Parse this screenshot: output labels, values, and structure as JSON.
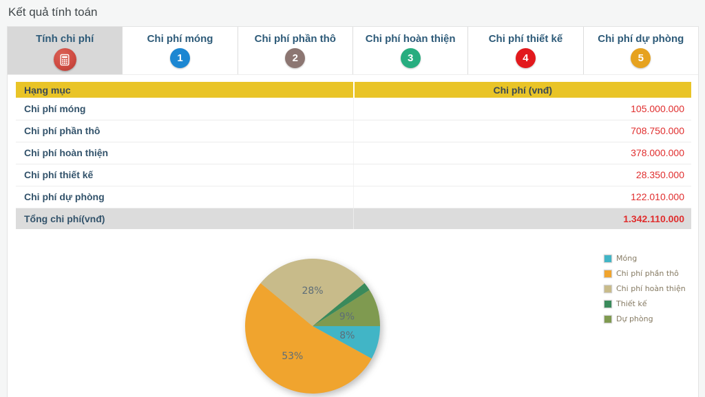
{
  "page": {
    "title": "Kết quả tính toán"
  },
  "colors": {
    "header_yellow": "#e9c427",
    "value_red": "#e02d2d",
    "label_navy": "#33536b",
    "active_tab_bg": "#d8d8d8",
    "total_row_bg": "#dcdcdc"
  },
  "tabs": [
    {
      "label": "Tính chi phí",
      "icon": "calculator-icon",
      "badge": "",
      "badge_color": "#cf4b42",
      "active": true
    },
    {
      "label": "Chi phí móng",
      "icon": "number-badge",
      "badge": "1",
      "badge_color": "#1c87d2",
      "active": false
    },
    {
      "label": "Chi phí phần thô",
      "icon": "number-badge",
      "badge": "2",
      "badge_color": "#8c7672",
      "active": false
    },
    {
      "label": "Chi phí hoàn thiện",
      "icon": "number-badge",
      "badge": "3",
      "badge_color": "#27ad7f",
      "active": false
    },
    {
      "label": "Chi phí thiết kế",
      "icon": "number-badge",
      "badge": "4",
      "badge_color": "#e2191d",
      "active": false
    },
    {
      "label": "Chi phí dự phòng",
      "icon": "number-badge",
      "badge": "5",
      "badge_color": "#e6a21f",
      "active": false
    }
  ],
  "table": {
    "headers": {
      "item": "Hạng mục",
      "cost": "Chi phí (vnđ)"
    },
    "rows": [
      {
        "item": "Chi phí móng",
        "cost": "105.000.000"
      },
      {
        "item": "Chi phí phần thô",
        "cost": "708.750.000"
      },
      {
        "item": "Chi phí hoàn thiện",
        "cost": "378.000.000"
      },
      {
        "item": "Chi phí thiết kế",
        "cost": "28.350.000"
      },
      {
        "item": "Chi phí dự phòng",
        "cost": "122.010.000"
      }
    ],
    "total": {
      "label": "Tổng chi phí(vnđ)",
      "value": "1.342.110.000"
    }
  },
  "chart_data": {
    "type": "pie",
    "title": "",
    "series": [
      {
        "name": "Móng",
        "value": 105000000,
        "percent": 8,
        "color": "#41b5c6"
      },
      {
        "name": "Chi phí phần thô",
        "value": 708750000,
        "percent": 53,
        "color": "#f0a42e"
      },
      {
        "name": "Chi phí hoàn thiện",
        "value": 378000000,
        "percent": 28,
        "color": "#c8bb8a"
      },
      {
        "name": "Thiết kế",
        "value": 28350000,
        "percent": 2,
        "color": "#3a8a5b"
      },
      {
        "name": "Dự phòng",
        "value": 122010000,
        "percent": 9,
        "color": "#7f9a50"
      }
    ],
    "label_format": "percent",
    "label_min_percent": 3,
    "start_angle_deg": 0,
    "direction": "clockwise",
    "legend_position": "right"
  }
}
